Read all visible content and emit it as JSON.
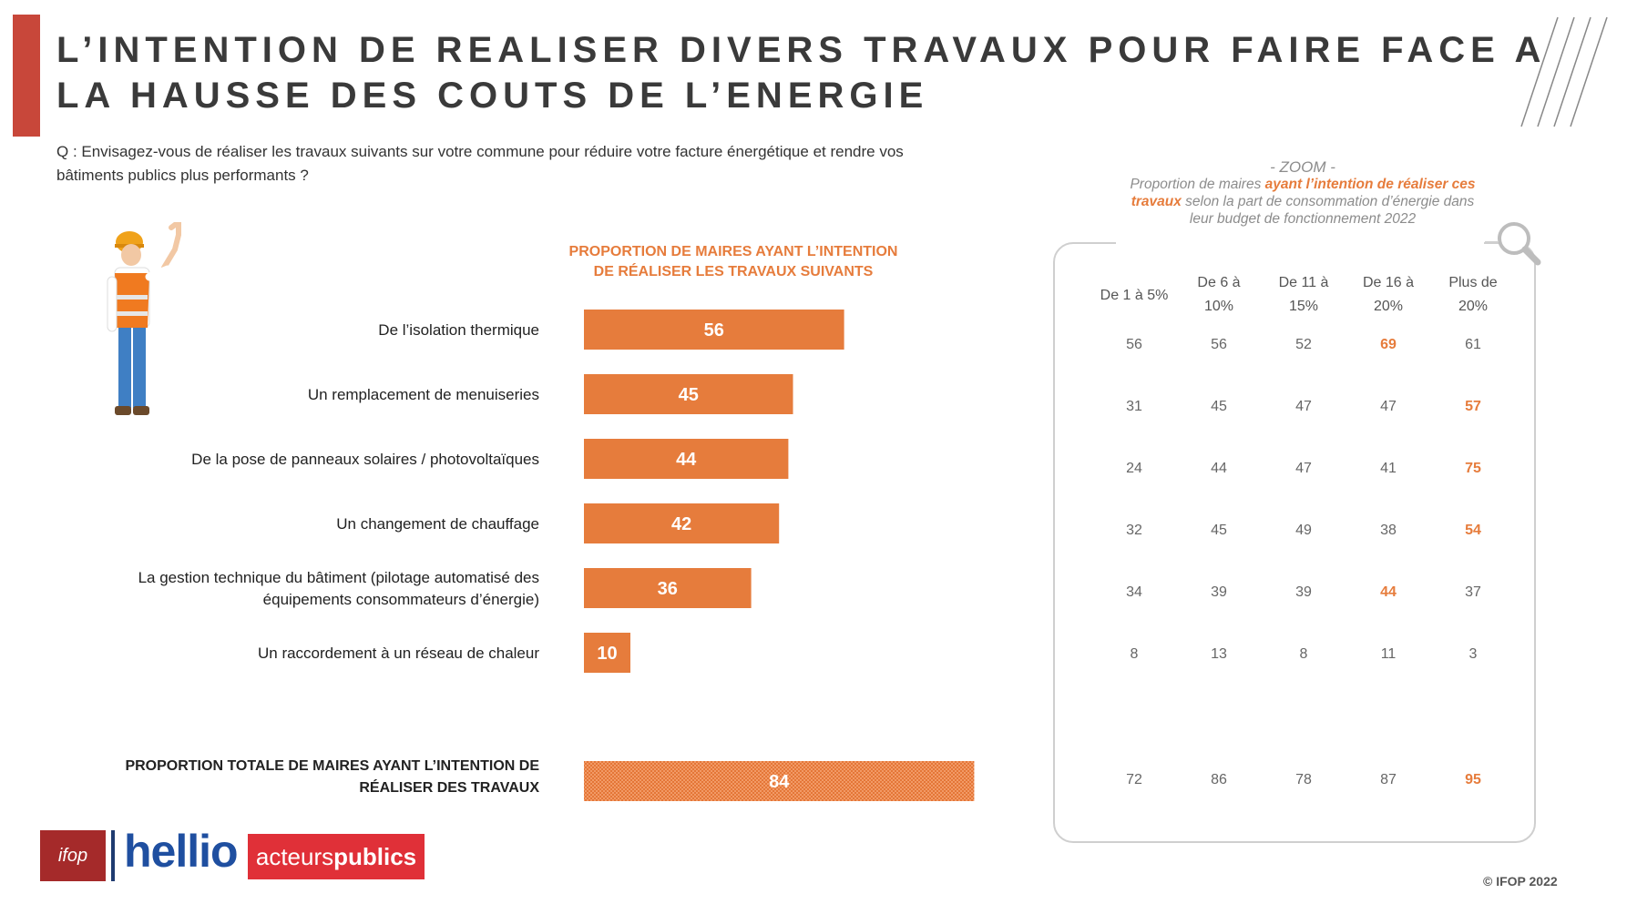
{
  "title_line1": "L’INTENTION DE REALISER DIVERS TRAVAUX POUR FAIRE FACE A",
  "title_line2": "LA HAUSSE DES COUTS DE L’ENERGIE",
  "question_line1": "Q : Envisagez-vous de réaliser les travaux suivants sur votre commune pour réduire votre facture énergétique et rendre vos",
  "question_line2": "bâtiments publics plus performants ?",
  "bars_title_line1": "PROPORTION DE MAIRES AYANT L’INTENTION",
  "bars_title_line2": "DE RÉALISER LES TRAVAUX SUIVANTS",
  "chart_data": {
    "type": "bar",
    "orientation": "horizontal",
    "categories": [
      [
        "De l’isolation thermique"
      ],
      [
        "Un remplacement de menuiseries"
      ],
      [
        "De la pose de panneaux solaires / photovoltaïques"
      ],
      [
        "Un changement de chauffage"
      ],
      [
        "La gestion technique du bâtiment (pilotage automatisé des",
        "équipements consommateurs d’énergie)"
      ],
      [
        "Un raccordement à un réseau de chaleur"
      ]
    ],
    "values": [
      56,
      45,
      44,
      42,
      36,
      10
    ],
    "total_label": [
      "PROPORTION TOTALE DE MAIRES AYANT L’INTENTION DE",
      "RÉALISER DES TRAVAUX"
    ],
    "total_value": 84,
    "bar_color": "#e67c3c"
  },
  "zoom": {
    "label": "- ZOOM -",
    "desc_part1": "Proportion de maires ",
    "desc_highlight": "ayant l’intention de réaliser ces travaux",
    "desc_part2": " selon la part de consommation d’énergie dans leur budget de fonctionnement 2022",
    "columns": [
      [
        "De 1 à 5%"
      ],
      [
        "De 6 à",
        "10%"
      ],
      [
        "De 11 à",
        "15%"
      ],
      [
        "De 16 à",
        "20%"
      ],
      [
        "Plus de",
        "20%"
      ]
    ],
    "rows": [
      [
        56,
        56,
        52,
        69,
        61
      ],
      [
        31,
        45,
        47,
        47,
        57
      ],
      [
        24,
        44,
        47,
        41,
        75
      ],
      [
        32,
        45,
        49,
        38,
        54
      ],
      [
        34,
        39,
        39,
        44,
        37
      ],
      [
        8,
        13,
        8,
        11,
        3
      ]
    ],
    "highlight_col": [
      3,
      4,
      4,
      4,
      3,
      -1
    ],
    "total_row": [
      72,
      86,
      78,
      87,
      95
    ],
    "total_highlight_col": 4,
    "highlight_color": "#e67c3c"
  },
  "logos": {
    "ifop": "ifop",
    "hellio": "hellio",
    "acteurs_light": "acteurs",
    "acteurs_bold": "publics"
  },
  "copyright": "© IFOP 2022"
}
